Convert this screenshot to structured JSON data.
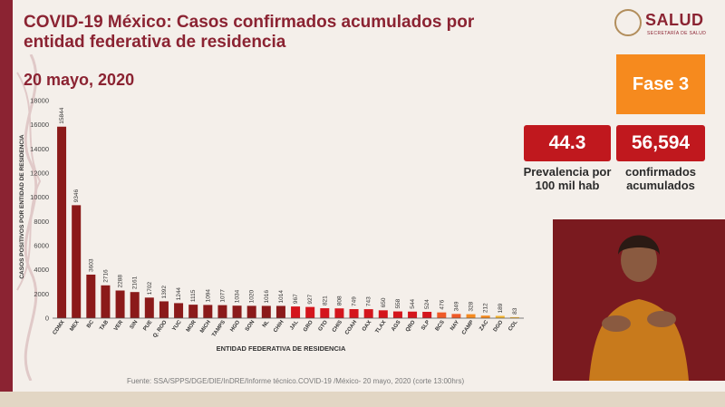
{
  "header": {
    "title": "COVID-19 México: Casos confirmados acumulados por entidad federativa de residencia",
    "date": "20 mayo, 2020"
  },
  "logo": {
    "text": "SALUD",
    "subtitle": "SECRETARÍA DE SALUD"
  },
  "phase": {
    "label": "Fase 3"
  },
  "stats": {
    "prevalence_value": "44.3",
    "prevalence_label": "Prevalencia por 100 mil hab",
    "confirmed_value": "56,594",
    "confirmed_label": "confirmados acumulados"
  },
  "footer": {
    "source": "Fuente: SSA/SPPS/DGE/DIE/InDRE/Informe técnico.COVID-19 /México- 20 mayo, 2020 (corte 13:00hrs)"
  },
  "colors": {
    "primary": "#8b2332",
    "accent": "#f68a1e",
    "stat_red": "#c0181e"
  },
  "chart_data": {
    "type": "bar",
    "xlabel": "ENTIDAD FEDERATIVA DE RESIDENCIA",
    "ylabel": "CASOS POSITIVOS POR ENTIDAD DE RESIDENCIA",
    "ylim": [
      0,
      18000
    ],
    "yticks": [
      0,
      2000,
      4000,
      6000,
      8000,
      10000,
      12000,
      14000,
      16000,
      18000
    ],
    "grid": false,
    "categories": [
      "CDMX",
      "MEX",
      "BC",
      "TAB",
      "VER",
      "SIN",
      "PUE",
      "Q. ROO",
      "YUC",
      "MOR",
      "MICH",
      "TAMPS",
      "HGO",
      "SON",
      "NL",
      "CHIH",
      "JAL",
      "GRO",
      "GTO",
      "CHIS",
      "COAH",
      "OAX",
      "TLAX",
      "AGS",
      "QRO",
      "SLP",
      "BCS",
      "NAY",
      "CAMP",
      "ZAC",
      "DGO",
      "COL"
    ],
    "values": [
      15844,
      9346,
      3603,
      2716,
      2288,
      2161,
      1702,
      1392,
      1244,
      1115,
      1094,
      1077,
      1034,
      1020,
      1016,
      1014,
      967,
      927,
      821,
      808,
      749,
      743,
      650,
      558,
      544,
      524,
      476,
      349,
      328,
      212,
      189,
      83
    ],
    "value_labels": [
      "15844",
      "9346",
      "3603",
      "2716",
      "2288",
      "2161",
      "1702",
      "1392",
      "1244",
      "1115",
      "1094",
      "1077",
      "1034",
      "1020",
      "1016",
      "1014",
      "967",
      "927",
      "821",
      "808",
      "749",
      "743",
      "650",
      "558",
      "544",
      "524",
      "476",
      "349",
      "328",
      "212",
      "189",
      "83"
    ],
    "bar_colors": [
      "#8b1a1a",
      "#8b1a1a",
      "#8b1a1a",
      "#8b1a1a",
      "#8b1a1a",
      "#8b1a1a",
      "#8b1a1a",
      "#8b1a1a",
      "#8b1a1a",
      "#8b1a1a",
      "#8b1a1a",
      "#8b1a1a",
      "#8b1a1a",
      "#8b1a1a",
      "#8b1a1a",
      "#8b1a1a",
      "#d4151c",
      "#d4151c",
      "#d4151c",
      "#d4151c",
      "#d4151c",
      "#d4151c",
      "#d4151c",
      "#d4151c",
      "#d4151c",
      "#d4151c",
      "#ef5a28",
      "#ef5a28",
      "#f58a1f",
      "#f58a1f",
      "#f5b52e",
      "#f5b52e"
    ]
  }
}
